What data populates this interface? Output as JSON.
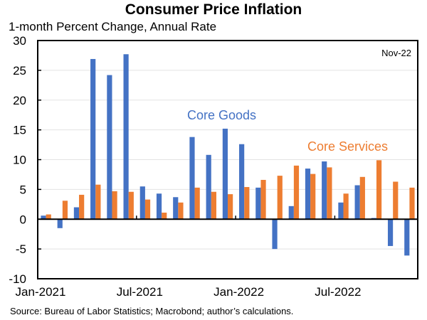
{
  "chart_data": {
    "type": "bar",
    "title": "Consumer Price Inflation",
    "subtitle": "1-month Percent Change, Annual Rate",
    "xlabel": "",
    "ylabel": "",
    "ylim": [
      -10,
      30
    ],
    "yticks": [
      -10,
      -5,
      0,
      5,
      10,
      15,
      20,
      25,
      30
    ],
    "ytick_labels": [
      "-10",
      "-5",
      "0",
      "5",
      "10",
      "15",
      "20",
      "25",
      "30"
    ],
    "grid": true,
    "categories": [
      "Jan-2021",
      "Feb-2021",
      "Mar-2021",
      "Apr-2021",
      "May-2021",
      "Jun-2021",
      "Jul-2021",
      "Aug-2021",
      "Sep-2021",
      "Oct-2021",
      "Nov-2021",
      "Dec-2021",
      "Jan-2022",
      "Feb-2022",
      "Mar-2022",
      "Apr-2022",
      "May-2022",
      "Jun-2022",
      "Jul-2022",
      "Aug-2022",
      "Sep-2022",
      "Oct-2022",
      "Nov-2022"
    ],
    "xtick_labels": [
      {
        "index": 0,
        "label": "Jan-2021"
      },
      {
        "index": 6,
        "label": "Jul-2021"
      },
      {
        "index": 12,
        "label": "Jan-2022"
      },
      {
        "index": 18,
        "label": "Jul-2022"
      }
    ],
    "series": [
      {
        "name": "Core Goods",
        "color": "#4472C4",
        "values": [
          0.6,
          -1.5,
          2.0,
          26.9,
          24.2,
          27.7,
          5.5,
          4.3,
          3.7,
          13.8,
          10.8,
          15.2,
          12.6,
          5.3,
          -5.0,
          2.2,
          8.5,
          9.7,
          2.8,
          5.7,
          0.2,
          -4.5,
          -6.1
        ]
      },
      {
        "name": "Core Services",
        "color": "#ED7D31",
        "values": [
          0.8,
          3.1,
          4.1,
          5.8,
          4.7,
          4.6,
          3.3,
          1.1,
          2.8,
          5.3,
          4.6,
          4.2,
          5.4,
          6.6,
          7.3,
          9.0,
          7.6,
          8.7,
          4.3,
          7.1,
          9.9,
          6.3,
          5.3
        ]
      }
    ],
    "annotations": [
      {
        "text": "Nov-22",
        "position": "top-right"
      },
      {
        "text": "Core Goods",
        "series": "Core Goods"
      },
      {
        "text": "Core Services",
        "series": "Core Services"
      }
    ],
    "legend": "inline-labels",
    "source": "Source: Bureau of Labor Statistics; Macrobond; author’s calculations."
  }
}
